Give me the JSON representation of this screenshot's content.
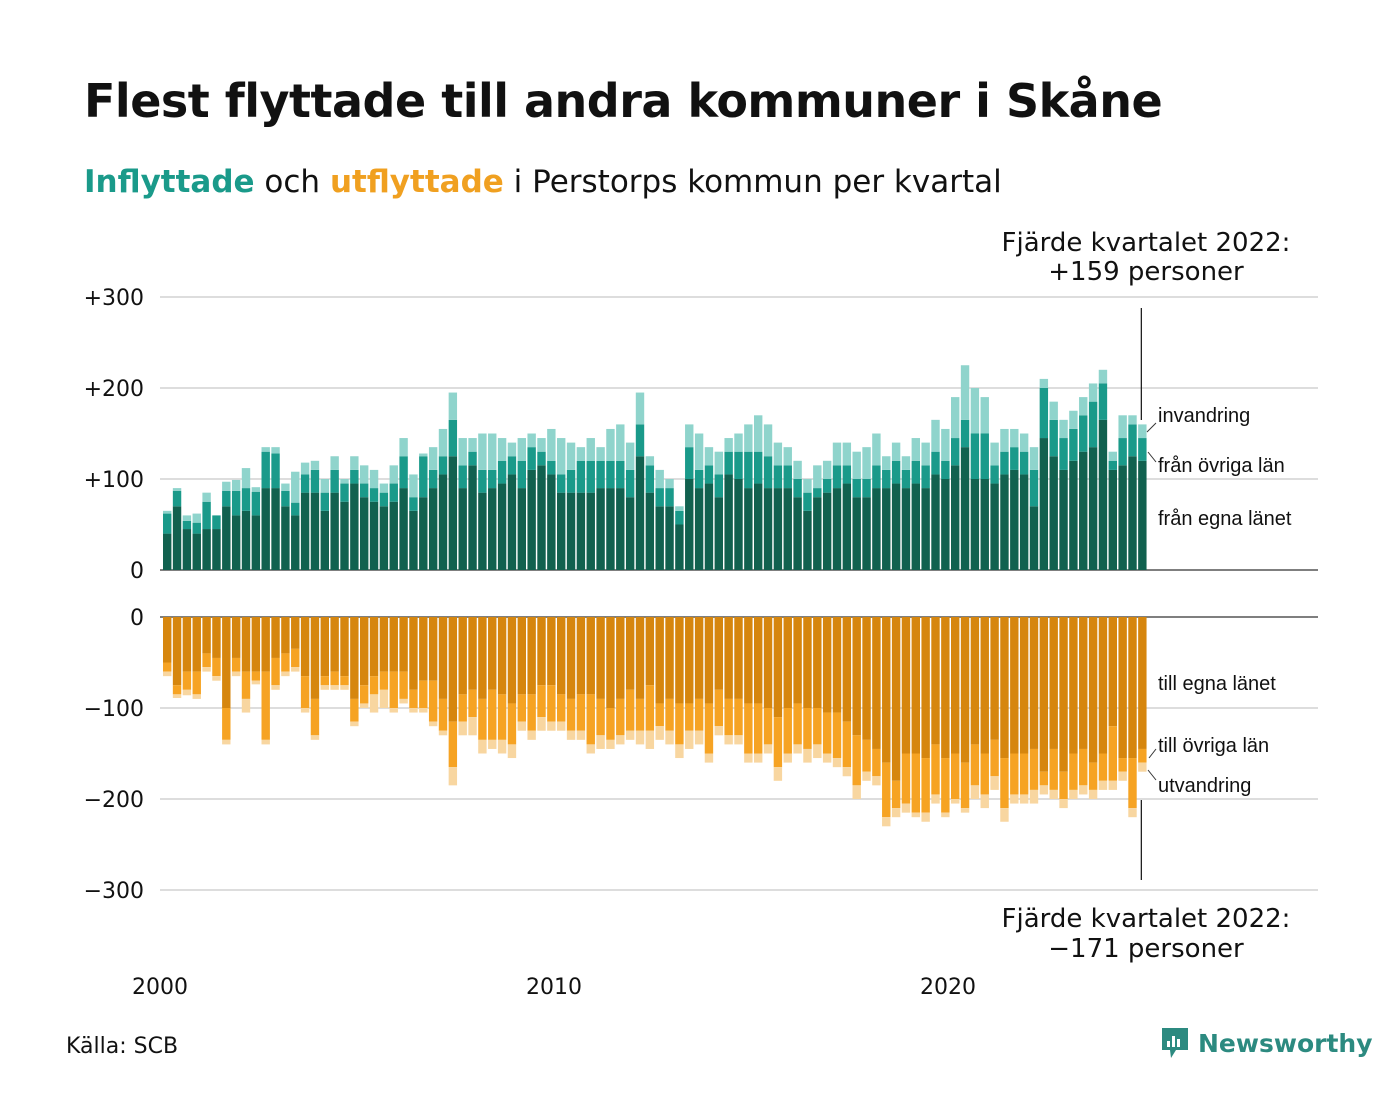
{
  "title": "Flest flyttade till andra kommuner i Skåne",
  "subtitle": {
    "part1": "Inflyttade",
    "part2": " och ",
    "part3": "utflyttade",
    "part4": " i Perstorps kommun per kvartal"
  },
  "source": "Källa: SCB",
  "brand": "Newsworthy",
  "colors": {
    "in_egna": "#11614f",
    "in_ovriga": "#1a9a8a",
    "in_invandring": "#8fd4cc",
    "out_egna": "#d6860e",
    "out_ovriga": "#f6a323",
    "out_utvandring": "#f8d6a0",
    "grid": "#dddddd"
  },
  "chart_data": {
    "type": "bar",
    "x_start": "2000 Q1",
    "x_ticks": [
      "2000",
      "2010",
      "2020"
    ],
    "y_ticks_top": [
      "+300",
      "+200",
      "+100",
      "0"
    ],
    "y_ticks_bottom": [
      "0",
      "−100",
      "−200",
      "−300"
    ],
    "ylim_top": [
      0,
      300
    ],
    "ylim_bottom": [
      -300,
      0
    ],
    "highlight_top": [
      "Fjärde kvartalet 2022:",
      "+159 personer"
    ],
    "highlight_bottom": [
      "Fjärde kvartalet 2022:",
      "−171 personer"
    ],
    "inflow_series": [
      {
        "name": "från egna länet",
        "values": [
          40,
          70,
          45,
          40,
          45,
          45,
          70,
          60,
          65,
          60,
          90,
          90,
          70,
          60,
          85,
          85,
          65,
          85,
          75,
          95,
          80,
          75,
          70,
          75,
          90,
          65,
          80,
          90,
          105,
          125,
          90,
          115,
          85,
          90,
          95,
          105,
          90,
          110,
          115,
          105,
          85,
          85,
          85,
          85,
          90,
          90,
          90,
          80,
          125,
          85,
          70,
          70,
          50,
          100,
          90,
          95,
          80,
          105,
          100,
          90,
          95,
          90,
          90,
          90,
          80,
          65,
          80,
          85,
          90,
          95,
          80,
          80,
          90,
          90,
          95,
          90,
          95,
          90,
          105,
          100,
          115,
          135,
          100,
          100,
          95,
          105,
          110,
          105,
          70,
          145,
          125,
          110,
          120,
          130,
          135,
          165,
          110,
          115,
          125,
          120
        ]
      },
      {
        "name": "från övriga län",
        "values": [
          22,
          17,
          9,
          12,
          30,
          15,
          17,
          27,
          25,
          26,
          40,
          38,
          17,
          14,
          20,
          25,
          20,
          25,
          20,
          15,
          15,
          15,
          15,
          20,
          35,
          15,
          45,
          20,
          20,
          40,
          25,
          15,
          25,
          20,
          25,
          20,
          30,
          25,
          15,
          15,
          20,
          25,
          35,
          35,
          30,
          30,
          30,
          30,
          35,
          30,
          20,
          20,
          15,
          35,
          20,
          20,
          25,
          25,
          30,
          40,
          35,
          35,
          25,
          25,
          20,
          20,
          10,
          15,
          25,
          20,
          20,
          20,
          25,
          20,
          25,
          20,
          25,
          25,
          25,
          20,
          30,
          30,
          50,
          50,
          20,
          25,
          25,
          25,
          40,
          55,
          40,
          35,
          35,
          40,
          50,
          40,
          10,
          30,
          35,
          25
        ]
      },
      {
        "name": "invandring",
        "values": [
          3,
          3,
          6,
          10,
          10,
          0,
          10,
          12,
          22,
          5,
          5,
          7,
          8,
          34,
          13,
          10,
          15,
          15,
          5,
          15,
          20,
          20,
          10,
          20,
          20,
          25,
          3,
          25,
          30,
          30,
          30,
          15,
          40,
          40,
          25,
          15,
          25,
          15,
          15,
          35,
          40,
          30,
          15,
          25,
          15,
          35,
          40,
          30,
          35,
          10,
          20,
          10,
          5,
          25,
          40,
          20,
          25,
          15,
          20,
          30,
          40,
          35,
          25,
          20,
          20,
          15,
          25,
          20,
          25,
          25,
          30,
          35,
          35,
          15,
          20,
          15,
          25,
          25,
          35,
          35,
          45,
          60,
          50,
          40,
          25,
          25,
          20,
          20,
          25,
          10,
          20,
          20,
          20,
          20,
          20,
          15,
          10,
          25,
          10,
          15
        ]
      }
    ],
    "outflow_series": [
      {
        "name": "till egna länet",
        "values": [
          50,
          75,
          60,
          60,
          40,
          45,
          100,
          45,
          60,
          60,
          60,
          45,
          40,
          35,
          65,
          90,
          65,
          60,
          65,
          90,
          75,
          65,
          60,
          60,
          60,
          80,
          70,
          70,
          90,
          115,
          85,
          80,
          90,
          80,
          85,
          95,
          85,
          85,
          75,
          75,
          85,
          90,
          85,
          85,
          90,
          100,
          90,
          80,
          90,
          75,
          95,
          90,
          95,
          95,
          90,
          95,
          80,
          90,
          90,
          95,
          95,
          100,
          110,
          100,
          95,
          100,
          100,
          105,
          105,
          115,
          130,
          135,
          145,
          160,
          180,
          150,
          150,
          155,
          140,
          155,
          150,
          160,
          140,
          150,
          135,
          155,
          150,
          150,
          145,
          170,
          145,
          170,
          150,
          145,
          160,
          150,
          120,
          155,
          155,
          145
        ]
      },
      {
        "name": "till övriga län",
        "values": [
          10,
          10,
          20,
          25,
          15,
          20,
          35,
          15,
          30,
          10,
          75,
          30,
          20,
          20,
          35,
          40,
          10,
          15,
          10,
          25,
          20,
          20,
          20,
          40,
          30,
          20,
          30,
          45,
          35,
          50,
          30,
          30,
          45,
          55,
          50,
          45,
          30,
          40,
          35,
          40,
          30,
          35,
          40,
          55,
          40,
          35,
          40,
          45,
          35,
          50,
          25,
          35,
          45,
          30,
          35,
          55,
          40,
          40,
          40,
          55,
          55,
          40,
          55,
          50,
          45,
          45,
          40,
          45,
          50,
          50,
          55,
          35,
          30,
          60,
          30,
          55,
          65,
          60,
          55,
          60,
          50,
          50,
          45,
          45,
          40,
          55,
          45,
          45,
          45,
          15,
          45,
          30,
          40,
          40,
          30,
          30,
          60,
          15,
          55,
          15
        ]
      },
      {
        "name": "utvandring",
        "values": [
          5,
          4,
          6,
          5,
          5,
          5,
          5,
          5,
          15,
          4,
          5,
          5,
          5,
          5,
          5,
          5,
          5,
          5,
          5,
          5,
          5,
          20,
          20,
          5,
          5,
          5,
          5,
          5,
          5,
          20,
          15,
          20,
          15,
          10,
          15,
          15,
          10,
          10,
          15,
          10,
          10,
          10,
          10,
          10,
          15,
          10,
          10,
          10,
          15,
          20,
          15,
          15,
          15,
          20,
          15,
          10,
          10,
          10,
          10,
          10,
          10,
          10,
          15,
          10,
          10,
          15,
          15,
          10,
          10,
          10,
          15,
          10,
          10,
          10,
          10,
          10,
          5,
          10,
          10,
          5,
          5,
          5,
          15,
          15,
          15,
          15,
          10,
          10,
          15,
          10,
          10,
          10,
          10,
          10,
          10,
          10,
          10,
          10,
          10,
          10
        ]
      }
    ],
    "series_labels_top": [
      "invandring",
      "från övriga län",
      "från egna länet"
    ],
    "series_labels_bottom": [
      "till egna länet",
      "till övriga län",
      "utvandring"
    ]
  }
}
